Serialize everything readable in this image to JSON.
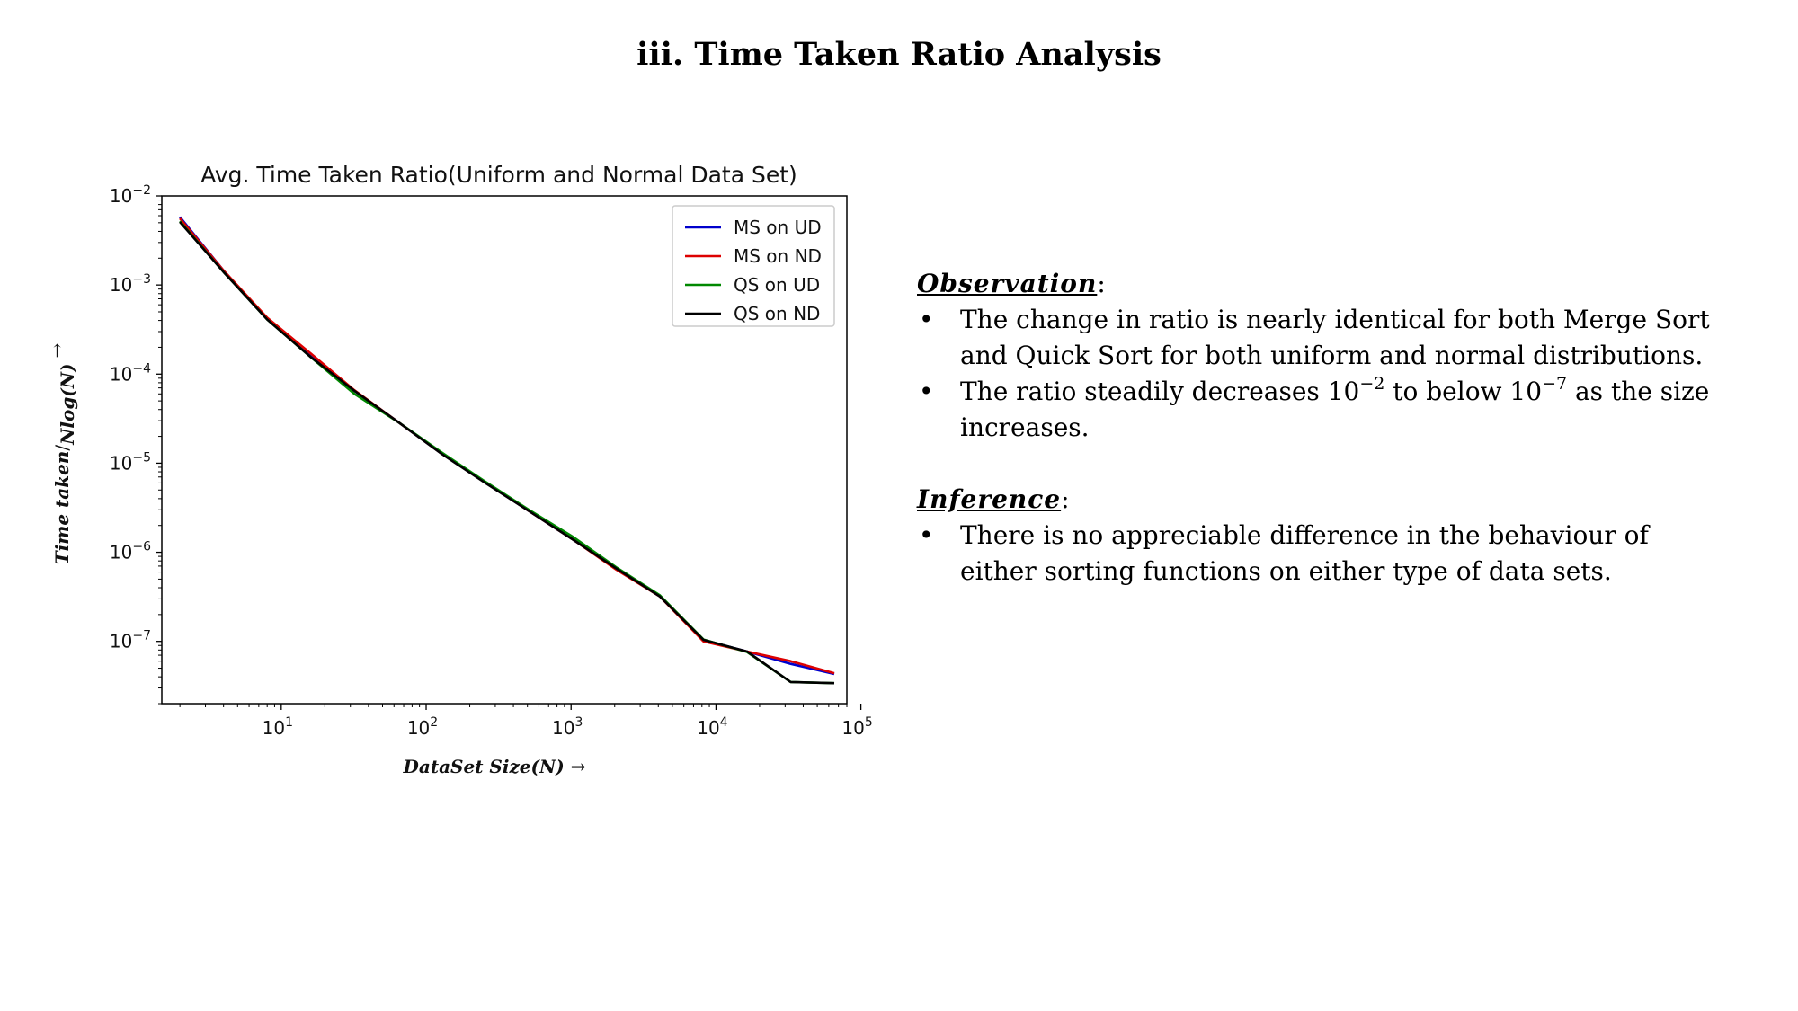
{
  "page": {
    "title_number": "iii",
    "title_text": ". Time Taken Ratio Analysis"
  },
  "chart_data": {
    "type": "line",
    "title": "Avg. Time Taken Ratio(Uniform and Normal Data Set)",
    "xlabel": "DataSet Size(N) →",
    "ylabel_main": "Time taken",
    "ylabel_sub": "Nlog(N)",
    "ylabel_arrow": "→",
    "x_scale": "log",
    "y_scale": "log",
    "xlim": [
      1.5,
      80000
    ],
    "ylim": [
      2e-08,
      0.01
    ],
    "x_ticks": [
      {
        "value": 10,
        "base": "10",
        "exp": "1"
      },
      {
        "value": 100,
        "base": "10",
        "exp": "2"
      },
      {
        "value": 1000,
        "base": "10",
        "exp": "3"
      },
      {
        "value": 10000,
        "base": "10",
        "exp": "4"
      },
      {
        "value": 100000,
        "base": "10",
        "exp": "5"
      }
    ],
    "y_ticks": [
      {
        "value": 0.01,
        "base": "10",
        "exp": "−2"
      },
      {
        "value": 0.001,
        "base": "10",
        "exp": "−3"
      },
      {
        "value": 0.0001,
        "base": "10",
        "exp": "−4"
      },
      {
        "value": 1e-05,
        "base": "10",
        "exp": "−5"
      },
      {
        "value": 1e-06,
        "base": "10",
        "exp": "−6"
      },
      {
        "value": 1e-07,
        "base": "10",
        "exp": "−7"
      }
    ],
    "grid": false,
    "legend_position": "top-right",
    "x": [
      2,
      4,
      8,
      16,
      32,
      64,
      128,
      256,
      512,
      1024,
      2048,
      4096,
      8192,
      16384,
      32768,
      65536
    ],
    "series": [
      {
        "name": "MS on UD",
        "color": "#0000cc",
        "values": [
          0.0058,
          0.00145,
          0.00042,
          0.00016,
          6.5e-05,
          2.9e-05,
          1.28e-05,
          6.1e-06,
          2.9e-06,
          1.4e-06,
          6.6e-07,
          3.2e-07,
          1.04e-07,
          7.7e-08,
          5.6e-08,
          4.3e-08
        ]
      },
      {
        "name": "MS on ND",
        "color": "#dd0000",
        "values": [
          0.0056,
          0.00145,
          0.00043,
          0.00017,
          6.6e-05,
          2.9e-05,
          1.28e-05,
          6.1e-06,
          2.9e-06,
          1.4e-06,
          6.4e-07,
          3.2e-07,
          1e-07,
          7.7e-08,
          6e-08,
          4.4e-08
        ]
      },
      {
        "name": "QS on UD",
        "color": "#008800",
        "values": [
          0.0052,
          0.0014,
          0.00041,
          0.000155,
          6e-05,
          2.9e-05,
          1.32e-05,
          6.2e-06,
          3e-06,
          1.5e-06,
          6.8e-07,
          3.3e-07,
          1.05e-07,
          7.6e-08,
          3.5e-08,
          3.4e-08
        ]
      },
      {
        "name": "QS on ND",
        "color": "#000000",
        "values": [
          0.0051,
          0.0014,
          0.00041,
          0.000155,
          6.5e-05,
          2.9e-05,
          1.27e-05,
          6e-06,
          2.9e-06,
          1.4e-06,
          6.6e-07,
          3.2e-07,
          1.04e-07,
          7.7e-08,
          3.5e-08,
          3.4e-08
        ]
      }
    ]
  },
  "observation": {
    "heading": "Observation",
    "colon": ":",
    "point1": "The change in ratio is nearly identical for both Merge Sort and Quick Sort for both uniform and normal distributions.",
    "point2_a": "The ratio steadily decreases 10",
    "point2_exp1": "−2",
    "point2_b": " to below 10",
    "point2_exp2": "−7",
    "point2_c": " as the size increases."
  },
  "inference": {
    "heading": "Inference",
    "colon": ":",
    "point1": "There is no appreciable difference in the behaviour of either sorting functions on either type of data sets."
  }
}
